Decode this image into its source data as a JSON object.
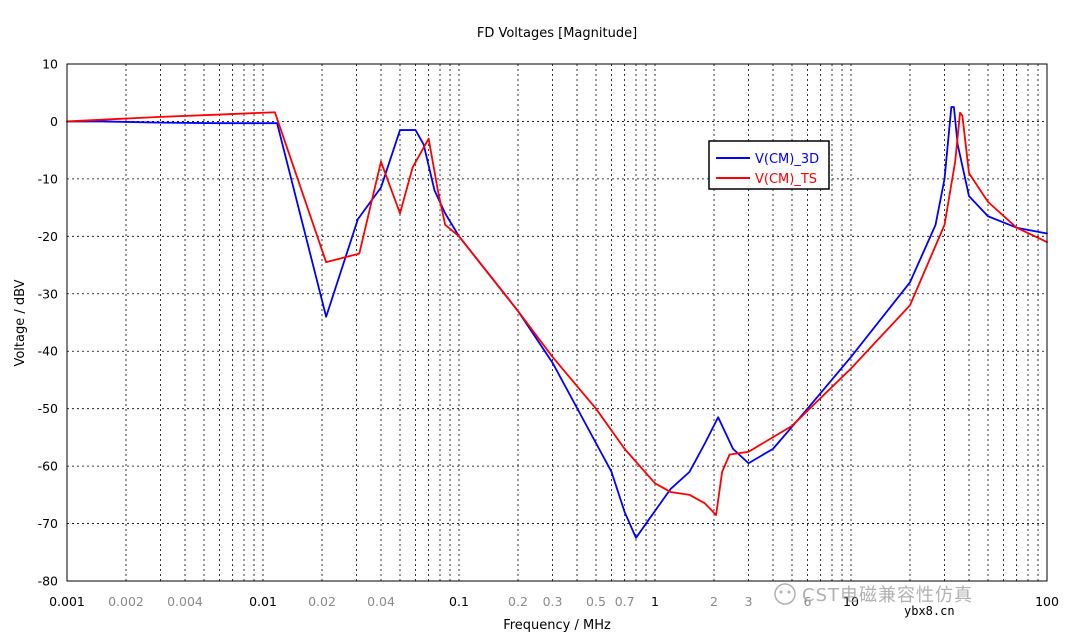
{
  "chart_data": {
    "type": "line",
    "title": "FD Voltages [Magnitude]",
    "xlabel": "Frequency / MHz",
    "ylabel": "Voltage / dBV",
    "xscale": "log",
    "xlim": [
      0.001,
      100
    ],
    "ylim": [
      -80,
      10
    ],
    "grid": true,
    "legend_position": "upper-right-inside",
    "x_ticks_major": [
      {
        "value": 0.001,
        "label": "0.001"
      },
      {
        "value": 0.01,
        "label": "0.01"
      },
      {
        "value": 0.1,
        "label": "0.1"
      },
      {
        "value": 1,
        "label": "1"
      },
      {
        "value": 10,
        "label": "10"
      },
      {
        "value": 100,
        "label": "100"
      }
    ],
    "x_ticks_minor_labeled": [
      {
        "value": 0.002,
        "label": "0.002"
      },
      {
        "value": 0.004,
        "label": "0.004"
      },
      {
        "value": 0.02,
        "label": "0.02"
      },
      {
        "value": 0.04,
        "label": "0.04"
      },
      {
        "value": 0.2,
        "label": "0.2"
      },
      {
        "value": 0.3,
        "label": "0.3"
      },
      {
        "value": 0.5,
        "label": "0.5"
      },
      {
        "value": 0.7,
        "label": "0.7"
      },
      {
        "value": 2,
        "label": "2"
      },
      {
        "value": 3,
        "label": "3"
      },
      {
        "value": 6,
        "label": "6"
      }
    ],
    "y_ticks": [
      10,
      0,
      -10,
      -20,
      -30,
      -40,
      -50,
      -60,
      -70,
      -80
    ],
    "series": [
      {
        "name": "V(CM)_3D",
        "color": "#0000ff",
        "points": [
          [
            0.001,
            0
          ],
          [
            0.0015,
            0
          ],
          [
            0.003,
            -0.2
          ],
          [
            0.006,
            -0.3
          ],
          [
            0.0118,
            -0.3
          ],
          [
            0.021,
            -34
          ],
          [
            0.0305,
            -17
          ],
          [
            0.04,
            -11.5
          ],
          [
            0.05,
            -1.5
          ],
          [
            0.06,
            -1.5
          ],
          [
            0.066,
            -4
          ],
          [
            0.075,
            -12
          ],
          [
            0.085,
            -16
          ],
          [
            0.1,
            -20
          ],
          [
            0.2,
            -33
          ],
          [
            0.3,
            -42
          ],
          [
            0.5,
            -56
          ],
          [
            0.6,
            -61
          ],
          [
            0.7,
            -68
          ],
          [
            0.8,
            -72.5
          ],
          [
            0.9,
            -70
          ],
          [
            1.2,
            -64
          ],
          [
            1.5,
            -61
          ],
          [
            1.8,
            -56
          ],
          [
            2.1,
            -51.5
          ],
          [
            2.5,
            -57
          ],
          [
            3.0,
            -59.5
          ],
          [
            4.0,
            -57
          ],
          [
            6,
            -50
          ],
          [
            10,
            -41
          ],
          [
            20,
            -28
          ],
          [
            27,
            -18
          ],
          [
            30,
            -10
          ],
          [
            32.5,
            2.5
          ],
          [
            33.5,
            2.5
          ],
          [
            35,
            -4
          ],
          [
            40,
            -13
          ],
          [
            50,
            -16.5
          ],
          [
            70,
            -18.5
          ],
          [
            100,
            -19.5
          ]
        ]
      },
      {
        "name": "V(CM)_TS",
        "color": "#ff0000",
        "points": [
          [
            0.001,
            0
          ],
          [
            0.003,
            0.8
          ],
          [
            0.006,
            1.2
          ],
          [
            0.0115,
            1.6
          ],
          [
            0.021,
            -24.5
          ],
          [
            0.031,
            -23
          ],
          [
            0.04,
            -7
          ],
          [
            0.05,
            -16
          ],
          [
            0.058,
            -8
          ],
          [
            0.07,
            -3
          ],
          [
            0.078,
            -12
          ],
          [
            0.085,
            -18
          ],
          [
            0.1,
            -20
          ],
          [
            0.2,
            -33
          ],
          [
            0.3,
            -41
          ],
          [
            0.5,
            -50
          ],
          [
            0.7,
            -57
          ],
          [
            1.0,
            -63
          ],
          [
            1.2,
            -64.5
          ],
          [
            1.5,
            -65
          ],
          [
            1.8,
            -66.5
          ],
          [
            2.05,
            -68.5
          ],
          [
            2.2,
            -61
          ],
          [
            2.4,
            -58
          ],
          [
            3.0,
            -57.5
          ],
          [
            5,
            -53
          ],
          [
            10,
            -43
          ],
          [
            20,
            -32
          ],
          [
            30,
            -18
          ],
          [
            34,
            -7
          ],
          [
            36,
            1.5
          ],
          [
            37,
            1
          ],
          [
            40,
            -9
          ],
          [
            50,
            -14
          ],
          [
            70,
            -18.5
          ],
          [
            100,
            -21
          ]
        ]
      }
    ]
  },
  "watermark": {
    "text": "CST电磁兼容性仿真",
    "site": "ybx8.cn"
  }
}
